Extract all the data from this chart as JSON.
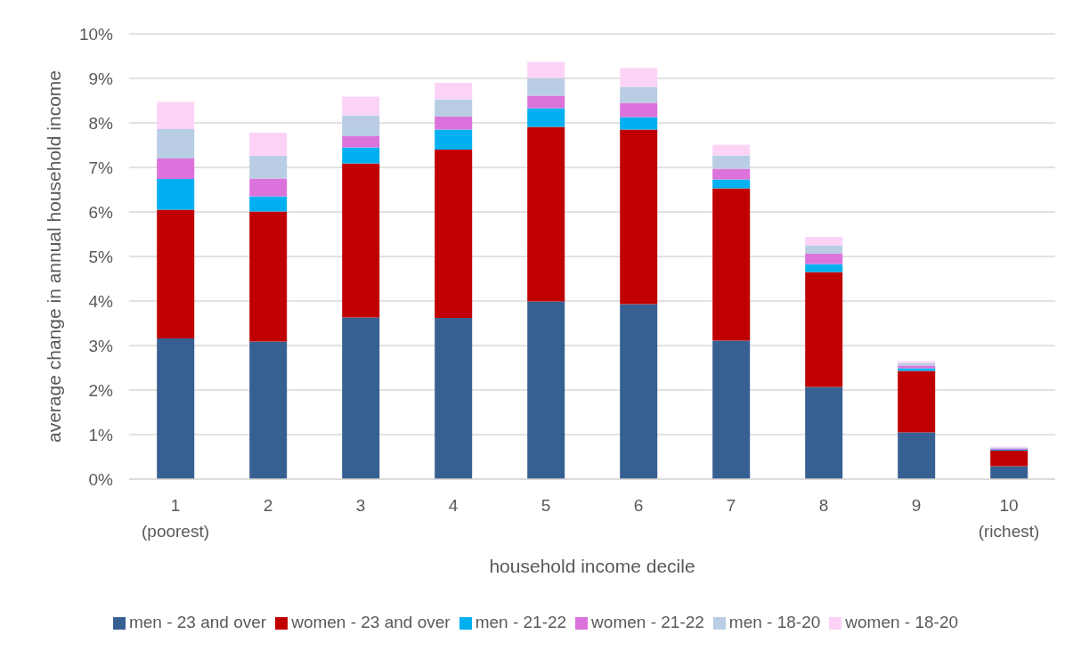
{
  "chart_data": {
    "type": "bar",
    "stacked": true,
    "categories": [
      "1\n(poorest)",
      "2",
      "3",
      "4",
      "5",
      "6",
      "7",
      "8",
      "9",
      "10\n(richest)"
    ],
    "series": [
      {
        "name": "men - 23 and over",
        "color": "#376092",
        "values": [
          3.16,
          3.09,
          3.63,
          3.62,
          3.99,
          3.93,
          3.11,
          2.07,
          1.05,
          0.29
        ]
      },
      {
        "name": "women - 23 and over",
        "color": "#c00000",
        "values": [
          2.89,
          2.92,
          3.46,
          3.78,
          3.92,
          3.92,
          3.42,
          2.58,
          1.38,
          0.35
        ]
      },
      {
        "name": "men - 21-22",
        "color": "#00b0f0",
        "values": [
          0.69,
          0.34,
          0.36,
          0.45,
          0.42,
          0.28,
          0.2,
          0.18,
          0.06,
          0.02
        ]
      },
      {
        "name": "women - 21-22",
        "color": "#dc72dc",
        "values": [
          0.46,
          0.4,
          0.25,
          0.29,
          0.28,
          0.32,
          0.24,
          0.23,
          0.06,
          0.03
        ]
      },
      {
        "name": "men - 18-20",
        "color": "#b9cde4",
        "values": [
          0.66,
          0.51,
          0.47,
          0.39,
          0.4,
          0.36,
          0.3,
          0.19,
          0.06,
          0.02
        ]
      },
      {
        "name": "women - 18-20",
        "color": "#fcd3f7",
        "values": [
          0.61,
          0.52,
          0.42,
          0.37,
          0.36,
          0.42,
          0.24,
          0.19,
          0.04,
          0.02
        ]
      }
    ],
    "ylim": [
      0,
      10
    ],
    "yticks": [
      {
        "value": 0,
        "label": "0%"
      },
      {
        "value": 1,
        "label": "1%"
      },
      {
        "value": 2,
        "label": "2%"
      },
      {
        "value": 3,
        "label": "3%"
      },
      {
        "value": 4,
        "label": "4%"
      },
      {
        "value": 5,
        "label": "5%"
      },
      {
        "value": 6,
        "label": "6%"
      },
      {
        "value": 7,
        "label": "7%"
      },
      {
        "value": 8,
        "label": "8%"
      },
      {
        "value": 9,
        "label": "9%"
      },
      {
        "value": 10,
        "label": "10%"
      }
    ],
    "xlabel": "household income decile",
    "ylabel": "average change in annual household income",
    "grid": "y",
    "legend": "bottom"
  }
}
